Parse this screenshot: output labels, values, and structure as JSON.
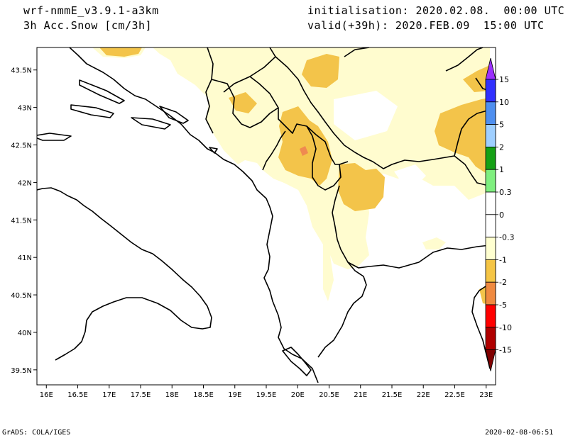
{
  "header": {
    "model": "wrf-nmmE_v3.9.1-a3km",
    "field": "3h Acc.Snow [cm/3h]",
    "init": "initialisation: 2020.02.08.  00:00 UTC",
    "valid": "valid(+39h): 2020.FEB.09  15:00 UTC"
  },
  "footer": {
    "left": "GrADS: COLA/IGES",
    "right": "2020-02-08-06:51"
  },
  "map": {
    "lat_ticks": [
      "43.5N",
      "43N",
      "42.5N",
      "42N",
      "41.5N",
      "41N",
      "40.5N",
      "40N",
      "39.5N"
    ],
    "lat_values": [
      43.5,
      43,
      42.5,
      42,
      41.5,
      41,
      40.5,
      40,
      39.5
    ],
    "lon_ticks": [
      "16E",
      "16.5E",
      "17E",
      "17.5E",
      "18E",
      "18.5E",
      "19E",
      "19.5E",
      "20E",
      "20.5E",
      "21E",
      "21.5E",
      "22E",
      "22.5E",
      "23E"
    ],
    "lon_values": [
      16,
      16.5,
      17,
      17.5,
      18,
      18.5,
      19,
      19.5,
      20,
      20.5,
      21,
      21.5,
      22,
      22.5,
      23
    ],
    "lon_range": [
      15.85,
      23.15
    ],
    "lat_range": [
      39.3,
      43.8
    ]
  },
  "colorbar": {
    "labels": [
      "15",
      "10",
      "5",
      "2",
      "1",
      "0.3",
      "0",
      "-0.3",
      "-1",
      "-2",
      "-5",
      "-10",
      "-15"
    ],
    "colors": [
      "#9b30ff",
      "#3030ff",
      "#4f8fef",
      "#9fcfff",
      "#15a015",
      "#7fef7f",
      "#ffffff",
      "#ffffff",
      "#ffffd0",
      "#f5c545",
      "#f08a40",
      "#ff0000",
      "#b00000",
      "#800000"
    ],
    "outline": "#000000"
  },
  "colors": {
    "snow_light": "#fffccf",
    "snow_moderate": "#f3c44a",
    "snow_heavy": "#ef8a50",
    "boundary": "#000000"
  }
}
